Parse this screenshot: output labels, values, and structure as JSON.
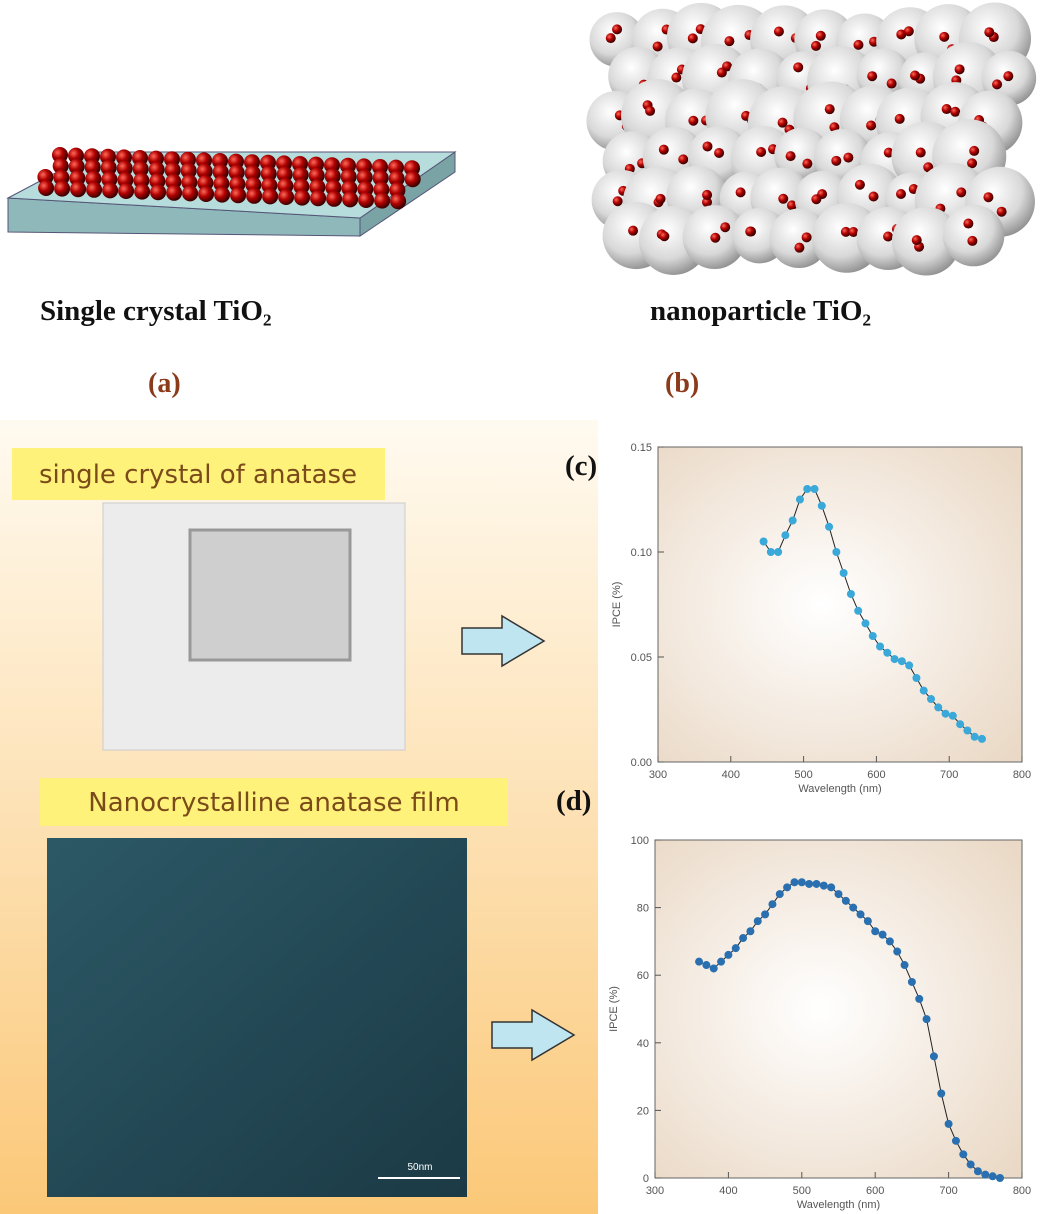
{
  "panels": {
    "a": {
      "caption": "Single crystal TiO₂",
      "label": "(a)"
    },
    "b": {
      "caption": "nanoparticle TiO₂",
      "label": "(b)"
    },
    "c_banner": "single crystal of anatase",
    "d_banner": "Nanocrystalline anatase film",
    "scale_bar": "50nm"
  },
  "chart_data": [
    {
      "type": "line",
      "panel_label": "(c)",
      "x_label": "Wavelength (nm)",
      "y_label": "IPCE (%)",
      "color": "#3aa8d8",
      "x": [
        445,
        455,
        465,
        475,
        485,
        495,
        505,
        515,
        525,
        535,
        545,
        555,
        565,
        575,
        585,
        595,
        605,
        615,
        625,
        635,
        645,
        655,
        665,
        675,
        685,
        695,
        705,
        715,
        725,
        735,
        745
      ],
      "values": [
        0.105,
        0.1,
        0.1,
        0.108,
        0.115,
        0.125,
        0.13,
        0.13,
        0.122,
        0.112,
        0.1,
        0.09,
        0.08,
        0.072,
        0.066,
        0.06,
        0.055,
        0.052,
        0.049,
        0.048,
        0.046,
        0.04,
        0.034,
        0.03,
        0.026,
        0.023,
        0.022,
        0.018,
        0.015,
        0.012,
        0.011
      ],
      "xlim": [
        300,
        800
      ],
      "xticks": [
        300,
        400,
        500,
        600,
        700,
        800
      ],
      "ylim": [
        0,
        0.15
      ],
      "yticks": [
        {
          "value": 0,
          "label": "0.00"
        },
        0.05,
        {
          "value": 0.1,
          "label": "0.10"
        },
        0.15
      ]
    },
    {
      "type": "line",
      "panel_label": "(d)",
      "x_label": "Wavelength (nm)",
      "y_label": "IPCE (%)",
      "color": "#2a6fb0",
      "x": [
        360,
        370,
        380,
        390,
        400,
        410,
        420,
        430,
        440,
        450,
        460,
        470,
        480,
        490,
        500,
        510,
        520,
        530,
        540,
        550,
        560,
        570,
        580,
        590,
        600,
        610,
        620,
        630,
        640,
        650,
        660,
        670,
        680,
        690,
        700,
        710,
        720,
        730,
        740,
        750,
        760,
        770
      ],
      "values": [
        64,
        63,
        62,
        64,
        66,
        68,
        71,
        73,
        76,
        78,
        81,
        84,
        86,
        87.5,
        87.5,
        87,
        87,
        86.5,
        86,
        84,
        82,
        80,
        78,
        76,
        73,
        72,
        70,
        67,
        63,
        58,
        53,
        47,
        36,
        25,
        16,
        11,
        7,
        4,
        2,
        1,
        0.5,
        0
      ],
      "xlim": [
        300,
        800
      ],
      "xticks": [
        300,
        400,
        500,
        600,
        700,
        800
      ],
      "ylim": [
        0,
        100
      ],
      "yticks": [
        0,
        20,
        40,
        60,
        80,
        100
      ]
    }
  ]
}
